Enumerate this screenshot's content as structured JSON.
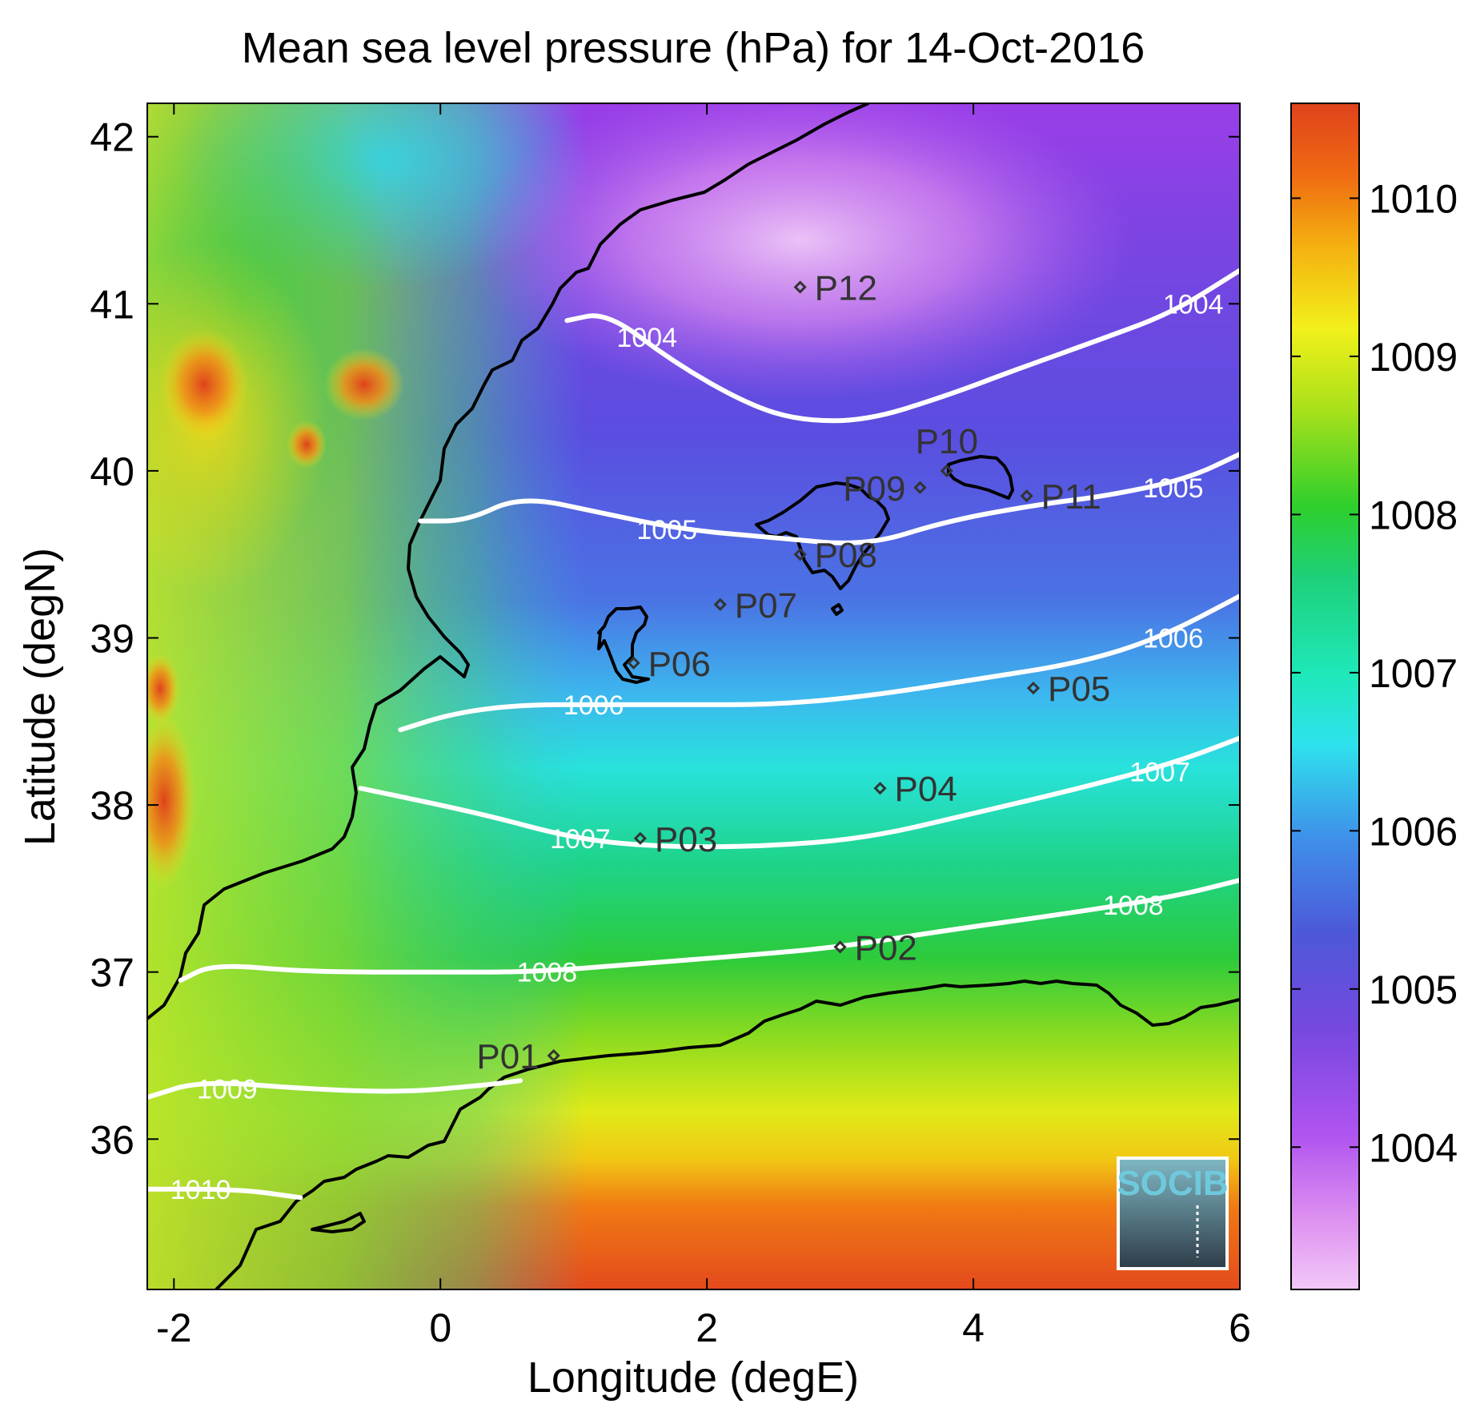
{
  "title": "Mean sea level pressure (hPa) for 14-Oct-2016",
  "logo_text": "SOCIB",
  "colors": {
    "contour": "#ffffff",
    "coast": "#000000",
    "point_marker": "#333333",
    "logo": "#6fc9dc"
  },
  "chart_data": {
    "type": "heatmap",
    "title": "Mean sea level pressure (hPa) for 14-Oct-2016",
    "xlabel": "Longitude (degE)",
    "ylabel": "Latitude (degN)",
    "xlim": [
      -2.2,
      6.0
    ],
    "ylim": [
      35.1,
      42.2
    ],
    "xticks": [
      -2,
      0,
      2,
      4,
      6
    ],
    "yticks": [
      36,
      37,
      38,
      39,
      40,
      41,
      42
    ],
    "colorbar": {
      "range": [
        1003.1,
        1010.6
      ],
      "ticks": [
        1004,
        1005,
        1006,
        1007,
        1008,
        1009,
        1010
      ]
    },
    "grid": false,
    "contours": [
      {
        "level": 1004,
        "points": [
          [
            0.95,
            40.9
          ],
          [
            1.25,
            40.95
          ],
          [
            1.75,
            40.65
          ],
          [
            2.3,
            40.4
          ],
          [
            2.7,
            40.3
          ],
          [
            3.2,
            40.3
          ],
          [
            3.8,
            40.45
          ],
          [
            4.3,
            40.6
          ],
          [
            5.0,
            40.8
          ],
          [
            5.5,
            40.95
          ],
          [
            6.0,
            41.2
          ]
        ],
        "labels": [
          [
            1.55,
            40.8
          ],
          [
            5.65,
            41.0
          ]
        ]
      },
      {
        "level": 1005,
        "points": [
          [
            -0.15,
            39.7
          ],
          [
            0.2,
            39.7
          ],
          [
            0.6,
            39.85
          ],
          [
            1.2,
            39.75
          ],
          [
            1.8,
            39.65
          ],
          [
            2.5,
            39.6
          ],
          [
            3.2,
            39.55
          ],
          [
            3.8,
            39.7
          ],
          [
            4.5,
            39.8
          ],
          [
            5.0,
            39.85
          ],
          [
            5.6,
            39.95
          ],
          [
            6.0,
            40.1
          ]
        ],
        "labels": [
          [
            1.7,
            39.65
          ],
          [
            5.5,
            39.9
          ]
        ]
      },
      {
        "level": 1006,
        "points": [
          [
            -0.3,
            38.45
          ],
          [
            0.1,
            38.55
          ],
          [
            0.6,
            38.6
          ],
          [
            1.2,
            38.6
          ],
          [
            1.8,
            38.6
          ],
          [
            2.5,
            38.6
          ],
          [
            3.2,
            38.65
          ],
          [
            4.0,
            38.75
          ],
          [
            4.8,
            38.85
          ],
          [
            5.4,
            39.0
          ],
          [
            6.0,
            39.25
          ]
        ],
        "labels": [
          [
            1.15,
            38.6
          ],
          [
            5.5,
            39.0
          ]
        ]
      },
      {
        "level": 1007,
        "points": [
          [
            -0.6,
            38.1
          ],
          [
            0.3,
            37.95
          ],
          [
            1.0,
            37.8
          ],
          [
            1.6,
            37.75
          ],
          [
            2.4,
            37.75
          ],
          [
            3.2,
            37.8
          ],
          [
            4.0,
            37.95
          ],
          [
            4.8,
            38.1
          ],
          [
            5.5,
            38.25
          ],
          [
            6.0,
            38.4
          ]
        ],
        "labels": [
          [
            1.05,
            37.8
          ],
          [
            5.4,
            38.2
          ]
        ]
      },
      {
        "level": 1008,
        "points": [
          [
            -1.95,
            36.95
          ],
          [
            -1.7,
            37.05
          ],
          [
            -1.0,
            37.0
          ],
          [
            0.0,
            37.0
          ],
          [
            0.7,
            37.0
          ],
          [
            1.5,
            37.05
          ],
          [
            2.3,
            37.1
          ],
          [
            3.0,
            37.15
          ],
          [
            3.8,
            37.25
          ],
          [
            4.7,
            37.35
          ],
          [
            5.5,
            37.45
          ],
          [
            6.0,
            37.55
          ]
        ],
        "labels": [
          [
            0.8,
            37.0
          ],
          [
            5.2,
            37.4
          ]
        ]
      },
      {
        "level": 1009,
        "points": [
          [
            -2.2,
            36.25
          ],
          [
            -1.8,
            36.35
          ],
          [
            -1.0,
            36.3
          ],
          [
            -0.3,
            36.28
          ],
          [
            0.3,
            36.32
          ],
          [
            0.6,
            36.35
          ]
        ],
        "labels": [
          [
            -1.6,
            36.3
          ]
        ]
      },
      {
        "level": 1010,
        "points": [
          [
            -2.2,
            35.7
          ],
          [
            -1.5,
            35.7
          ],
          [
            -1.05,
            35.65
          ]
        ],
        "labels": [
          [
            -1.8,
            35.7
          ]
        ]
      }
    ],
    "points": [
      {
        "name": "P01",
        "lon": 0.85,
        "lat": 36.5,
        "label_side": "left"
      },
      {
        "name": "P02",
        "lon": 3.0,
        "lat": 37.15,
        "label_side": "right"
      },
      {
        "name": "P03",
        "lon": 1.5,
        "lat": 37.8,
        "label_side": "right"
      },
      {
        "name": "P04",
        "lon": 3.3,
        "lat": 38.1,
        "label_side": "right"
      },
      {
        "name": "P05",
        "lon": 4.45,
        "lat": 38.7,
        "label_side": "right"
      },
      {
        "name": "P06",
        "lon": 1.45,
        "lat": 38.85,
        "label_side": "right"
      },
      {
        "name": "P07",
        "lon": 2.1,
        "lat": 39.2,
        "label_side": "right"
      },
      {
        "name": "P08",
        "lon": 2.7,
        "lat": 39.5,
        "label_side": "right"
      },
      {
        "name": "P09",
        "lon": 3.6,
        "lat": 39.9,
        "label_side": "left"
      },
      {
        "name": "P10",
        "lon": 3.8,
        "lat": 40.0,
        "label_side": "above"
      },
      {
        "name": "P11",
        "lon": 4.4,
        "lat": 39.85,
        "label_side": "right"
      },
      {
        "name": "P12",
        "lon": 2.7,
        "lat": 41.1,
        "label_side": "right"
      }
    ]
  }
}
